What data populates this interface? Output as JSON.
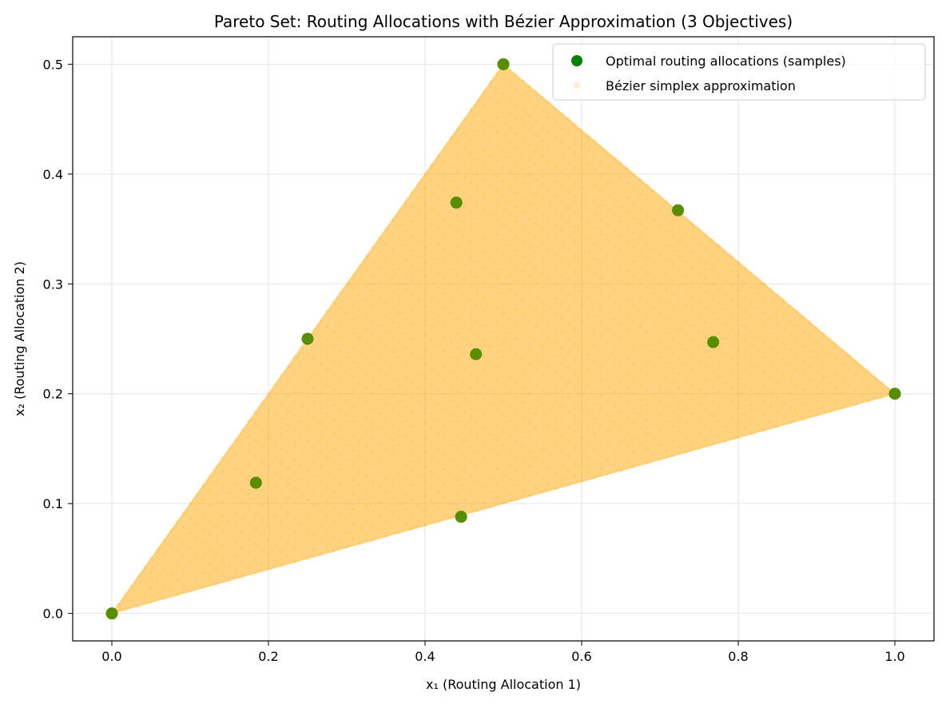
{
  "chart_data": {
    "type": "scatter",
    "title": "Pareto Set: Routing Allocations with Bézier Approximation (3 Objectives)",
    "xlabel": "x₁ (Routing Allocation 1)",
    "ylabel": "x₂ (Routing Allocation 2)",
    "xlim": [
      -0.05,
      1.05
    ],
    "ylim": [
      -0.025,
      0.525
    ],
    "x_ticks": [
      0.0,
      0.2,
      0.4,
      0.6,
      0.8,
      1.0
    ],
    "x_tick_labels": [
      "0.0",
      "0.2",
      "0.4",
      "0.6",
      "0.8",
      "1.0"
    ],
    "y_ticks": [
      0.0,
      0.1,
      0.2,
      0.3,
      0.4,
      0.5
    ],
    "y_tick_labels": [
      "0.0",
      "0.1",
      "0.2",
      "0.3",
      "0.4",
      "0.5"
    ],
    "grid": true,
    "legend_position": "top-right",
    "series": [
      {
        "name": "Optimal routing allocations (samples)",
        "color": "#008000",
        "marker": "filled-circle",
        "points": [
          {
            "x": 0.0,
            "y": 0.0
          },
          {
            "x": 1.0,
            "y": 0.2
          },
          {
            "x": 0.5,
            "y": 0.5
          },
          {
            "x": 0.25,
            "y": 0.25
          },
          {
            "x": 0.723,
            "y": 0.367
          },
          {
            "x": 0.446,
            "y": 0.088
          },
          {
            "x": 0.44,
            "y": 0.374
          },
          {
            "x": 0.465,
            "y": 0.236
          },
          {
            "x": 0.768,
            "y": 0.247
          },
          {
            "x": 0.184,
            "y": 0.119
          }
        ]
      },
      {
        "name": "Bézier simplex approximation",
        "color": "#ffa500",
        "marker": "faint-dots",
        "vertices": [
          {
            "x": 0.0,
            "y": 0.0
          },
          {
            "x": 1.0,
            "y": 0.2
          },
          {
            "x": 0.5,
            "y": 0.5
          }
        ]
      }
    ]
  }
}
